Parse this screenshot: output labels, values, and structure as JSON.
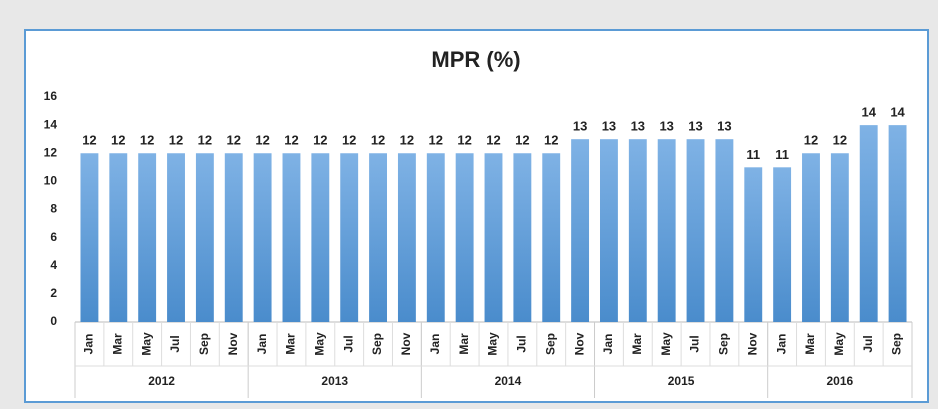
{
  "chart_data": {
    "type": "bar",
    "title": "MPR (%)",
    "color": "#5b9bd5",
    "ylim": [
      0,
      16
    ],
    "yticks": [
      0,
      2,
      4,
      6,
      8,
      10,
      12,
      14,
      16
    ],
    "groups": [
      {
        "name": "2012",
        "categories": [
          "Jan",
          "Mar",
          "May",
          "Jul",
          "Sep",
          "Nov"
        ],
        "values": [
          12,
          12,
          12,
          12,
          12,
          12
        ]
      },
      {
        "name": "2013",
        "categories": [
          "Jan",
          "Mar",
          "May",
          "Jul",
          "Sep",
          "Nov"
        ],
        "values": [
          12,
          12,
          12,
          12,
          12,
          12
        ]
      },
      {
        "name": "2014",
        "categories": [
          "Jan",
          "Mar",
          "May",
          "Jul",
          "Sep",
          "Nov"
        ],
        "values": [
          12,
          12,
          12,
          12,
          12,
          13
        ]
      },
      {
        "name": "2015",
        "categories": [
          "Jan",
          "Mar",
          "May",
          "Jul",
          "Sep",
          "Nov"
        ],
        "values": [
          13,
          13,
          13,
          13,
          13,
          11
        ]
      },
      {
        "name": "2016",
        "categories": [
          "Jan",
          "Mar",
          "May",
          "Jul",
          "Sep"
        ],
        "values": [
          11,
          12,
          12,
          14,
          14
        ]
      }
    ]
  }
}
